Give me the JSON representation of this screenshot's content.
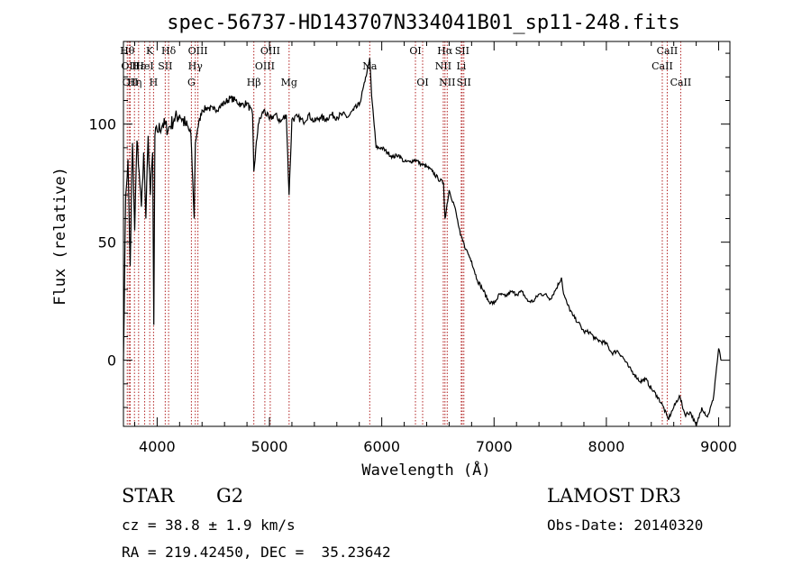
{
  "chart_data": {
    "type": "line",
    "title": "spec-56737-HD143707N334041B01_sp11-248.fits",
    "xlabel": "Wavelength (Å)",
    "ylabel": "Flux (relative)",
    "xlim": [
      3700,
      9100
    ],
    "ylim": [
      -28,
      135
    ],
    "xticks": [
      {
        "value": 4000,
        "label": "4000"
      },
      {
        "value": 5000,
        "label": "5000"
      },
      {
        "value": 6000,
        "label": "6000"
      },
      {
        "value": 7000,
        "label": "7000"
      },
      {
        "value": 8000,
        "label": "8000"
      },
      {
        "value": 9000,
        "label": "9000"
      }
    ],
    "yticks": [
      {
        "value": 0,
        "label": "0"
      },
      {
        "value": 50,
        "label": "50"
      },
      {
        "value": 100,
        "label": "100"
      }
    ],
    "series": [
      {
        "x": [
          3700,
          3720,
          3740,
          3760,
          3780,
          3800,
          3820,
          3840,
          3860,
          3880,
          3900,
          3920,
          3940,
          3960,
          3970,
          3980,
          4000,
          4050,
          4100,
          4150,
          4200,
          4250,
          4300,
          4330,
          4340,
          4360,
          4400,
          4450,
          4500,
          4550,
          4600,
          4650,
          4700,
          4750,
          4800,
          4850,
          4861,
          4900,
          4950,
          5000,
          5050,
          5100,
          5150,
          5175,
          5200,
          5250,
          5300,
          5350,
          5400,
          5450,
          5500,
          5550,
          5600,
          5650,
          5700,
          5750,
          5800,
          5850,
          5880,
          5893,
          5910,
          5950,
          6000,
          6050,
          6100,
          6150,
          6200,
          6250,
          6300,
          6350,
          6400,
          6450,
          6500,
          6550,
          6563,
          6600,
          6650,
          6700,
          6750,
          6800,
          6850,
          6900,
          6950,
          7000,
          7050,
          7100,
          7150,
          7200,
          7250,
          7300,
          7350,
          7400,
          7450,
          7500,
          7550,
          7600,
          7620,
          7650,
          7700,
          7750,
          7800,
          7850,
          7900,
          7950,
          8000,
          8050,
          8100,
          8150,
          8200,
          8250,
          8300,
          8350,
          8400,
          8450,
          8500,
          8550,
          8600,
          8650,
          8700,
          8750,
          8800,
          8850,
          8900,
          8950,
          9000,
          9020
        ],
        "values": [
          0,
          70,
          85,
          40,
          92,
          55,
          93,
          80,
          65,
          88,
          60,
          95,
          70,
          88,
          15,
          95,
          97,
          100,
          98,
          102,
          104,
          100,
          96,
          60,
          92,
          98,
          106,
          107,
          106,
          107,
          109,
          111,
          110,
          108,
          109,
          104,
          80,
          100,
          106,
          102,
          104,
          101,
          104,
          70,
          102,
          103,
          101,
          104,
          101,
          103,
          102,
          104,
          103,
          104,
          103,
          106,
          108,
          118,
          125,
          128,
          112,
          90,
          90,
          88,
          86,
          87,
          84,
          84,
          85,
          83,
          82,
          80,
          77,
          75,
          60,
          72,
          65,
          53,
          47,
          42,
          34,
          30,
          25,
          24,
          28,
          27,
          29,
          28,
          29,
          25,
          25,
          28,
          28,
          26,
          30,
          35,
          28,
          24,
          19,
          16,
          12,
          12,
          9,
          8,
          7,
          3,
          4,
          1,
          -3,
          -6,
          -9,
          -8,
          -12,
          -15,
          -19,
          -25,
          -20,
          -15,
          -23,
          -22,
          -28,
          -20,
          -24,
          -17,
          5,
          0
        ]
      }
    ],
    "spectral_lines": [
      {
        "wl": 3734,
        "label": "Hθ",
        "row": 0
      },
      {
        "wl": 3750,
        "label": "OII",
        "row": 1
      },
      {
        "wl": 3760,
        "label": "OII",
        "row": 2
      },
      {
        "wl": 3798,
        "label": "Hη",
        "row": 2
      },
      {
        "wl": 3835,
        "label": "Hε",
        "row": 1
      },
      {
        "wl": 3889,
        "label": "HeI",
        "row": 1
      },
      {
        "wl": 3934,
        "label": "K",
        "row": 0
      },
      {
        "wl": 3968,
        "label": "H",
        "row": 2
      },
      {
        "wl": 4072,
        "label": "SII",
        "row": 1
      },
      {
        "wl": 4102,
        "label": "Hδ",
        "row": 0
      },
      {
        "wl": 4305,
        "label": "G",
        "row": 2
      },
      {
        "wl": 4340,
        "label": "Hγ",
        "row": 1
      },
      {
        "wl": 4363,
        "label": "OIII",
        "row": 0
      },
      {
        "wl": 4861,
        "label": "Hβ",
        "row": 2
      },
      {
        "wl": 4959,
        "label": "OIII",
        "row": 1
      },
      {
        "wl": 5007,
        "label": "OIII",
        "row": 0
      },
      {
        "wl": 5175,
        "label": "Mg",
        "row": 2
      },
      {
        "wl": 5893,
        "label": "Na",
        "row": 1
      },
      {
        "wl": 6300,
        "label": "OI",
        "row": 0
      },
      {
        "wl": 6364,
        "label": "OI",
        "row": 2
      },
      {
        "wl": 6548,
        "label": "NII",
        "row": 1
      },
      {
        "wl": 6563,
        "label": "Hα",
        "row": 0
      },
      {
        "wl": 6583,
        "label": "NII",
        "row": 2
      },
      {
        "wl": 6708,
        "label": "Li",
        "row": 1
      },
      {
        "wl": 6716,
        "label": "SII",
        "row": 0
      },
      {
        "wl": 6731,
        "label": "SII",
        "row": 2
      },
      {
        "wl": 8498,
        "label": "CaII",
        "row": 1
      },
      {
        "wl": 8542,
        "label": "CaII",
        "row": 0
      },
      {
        "wl": 8662,
        "label": "CaII",
        "row": 2
      }
    ]
  },
  "info": {
    "object_class": "STAR",
    "subclass": "G2",
    "survey": "LAMOST DR3",
    "cz": "cz = 38.8 ± 1.9 km/s",
    "obs_date": "Obs-Date: 20140320",
    "coords": "RA = 219.42450, DEC =  35.23642"
  },
  "colors": {
    "line_marker": "#b22222",
    "spectrum": "#000000"
  }
}
